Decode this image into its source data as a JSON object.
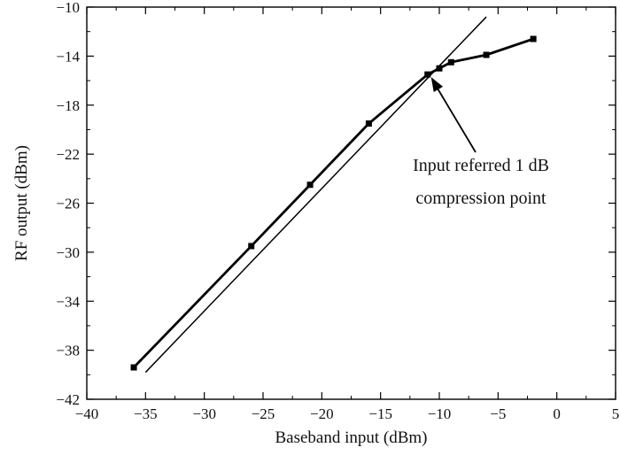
{
  "chart_data": {
    "type": "line",
    "title": "",
    "xlabel": "Baseband input (dBm)",
    "ylabel": "RF output (dBm)",
    "xlim": [
      -40,
      5
    ],
    "ylim": [
      -42,
      -10
    ],
    "xticks": [
      -40,
      -35,
      -30,
      -25,
      -20,
      -15,
      -10,
      -5,
      0,
      5
    ],
    "yticks": [
      -42,
      -38,
      -34,
      -30,
      -26,
      -22,
      -18,
      -14,
      -10
    ],
    "xtick_labels": [
      "−40",
      "−35",
      "−30",
      "−25",
      "−20",
      "−15",
      "−10",
      "−5",
      "0",
      "5"
    ],
    "ytick_labels": [
      "−42",
      "−38",
      "−34",
      "−30",
      "−26",
      "−22",
      "−18",
      "−14",
      "−10"
    ],
    "grid": false,
    "legend": "none",
    "series": [
      {
        "style": "measured",
        "marker": "square",
        "x": [
          -36,
          -26,
          -21,
          -16,
          -11,
          -10,
          -9,
          -6,
          -2
        ],
        "y": [
          -39.4,
          -29.5,
          -24.5,
          -19.5,
          -15.5,
          -15.0,
          -14.5,
          -13.9,
          -12.6
        ]
      },
      {
        "style": "ideal-linear",
        "marker": "none",
        "x": [
          -35,
          -6
        ],
        "y": [
          -39.8,
          -10.8
        ]
      }
    ],
    "annotations": [
      {
        "lines": [
          "Input referred 1 dB",
          "compression point"
        ],
        "arrow_to": {
          "x": -11,
          "y": -15.5
        }
      }
    ]
  }
}
